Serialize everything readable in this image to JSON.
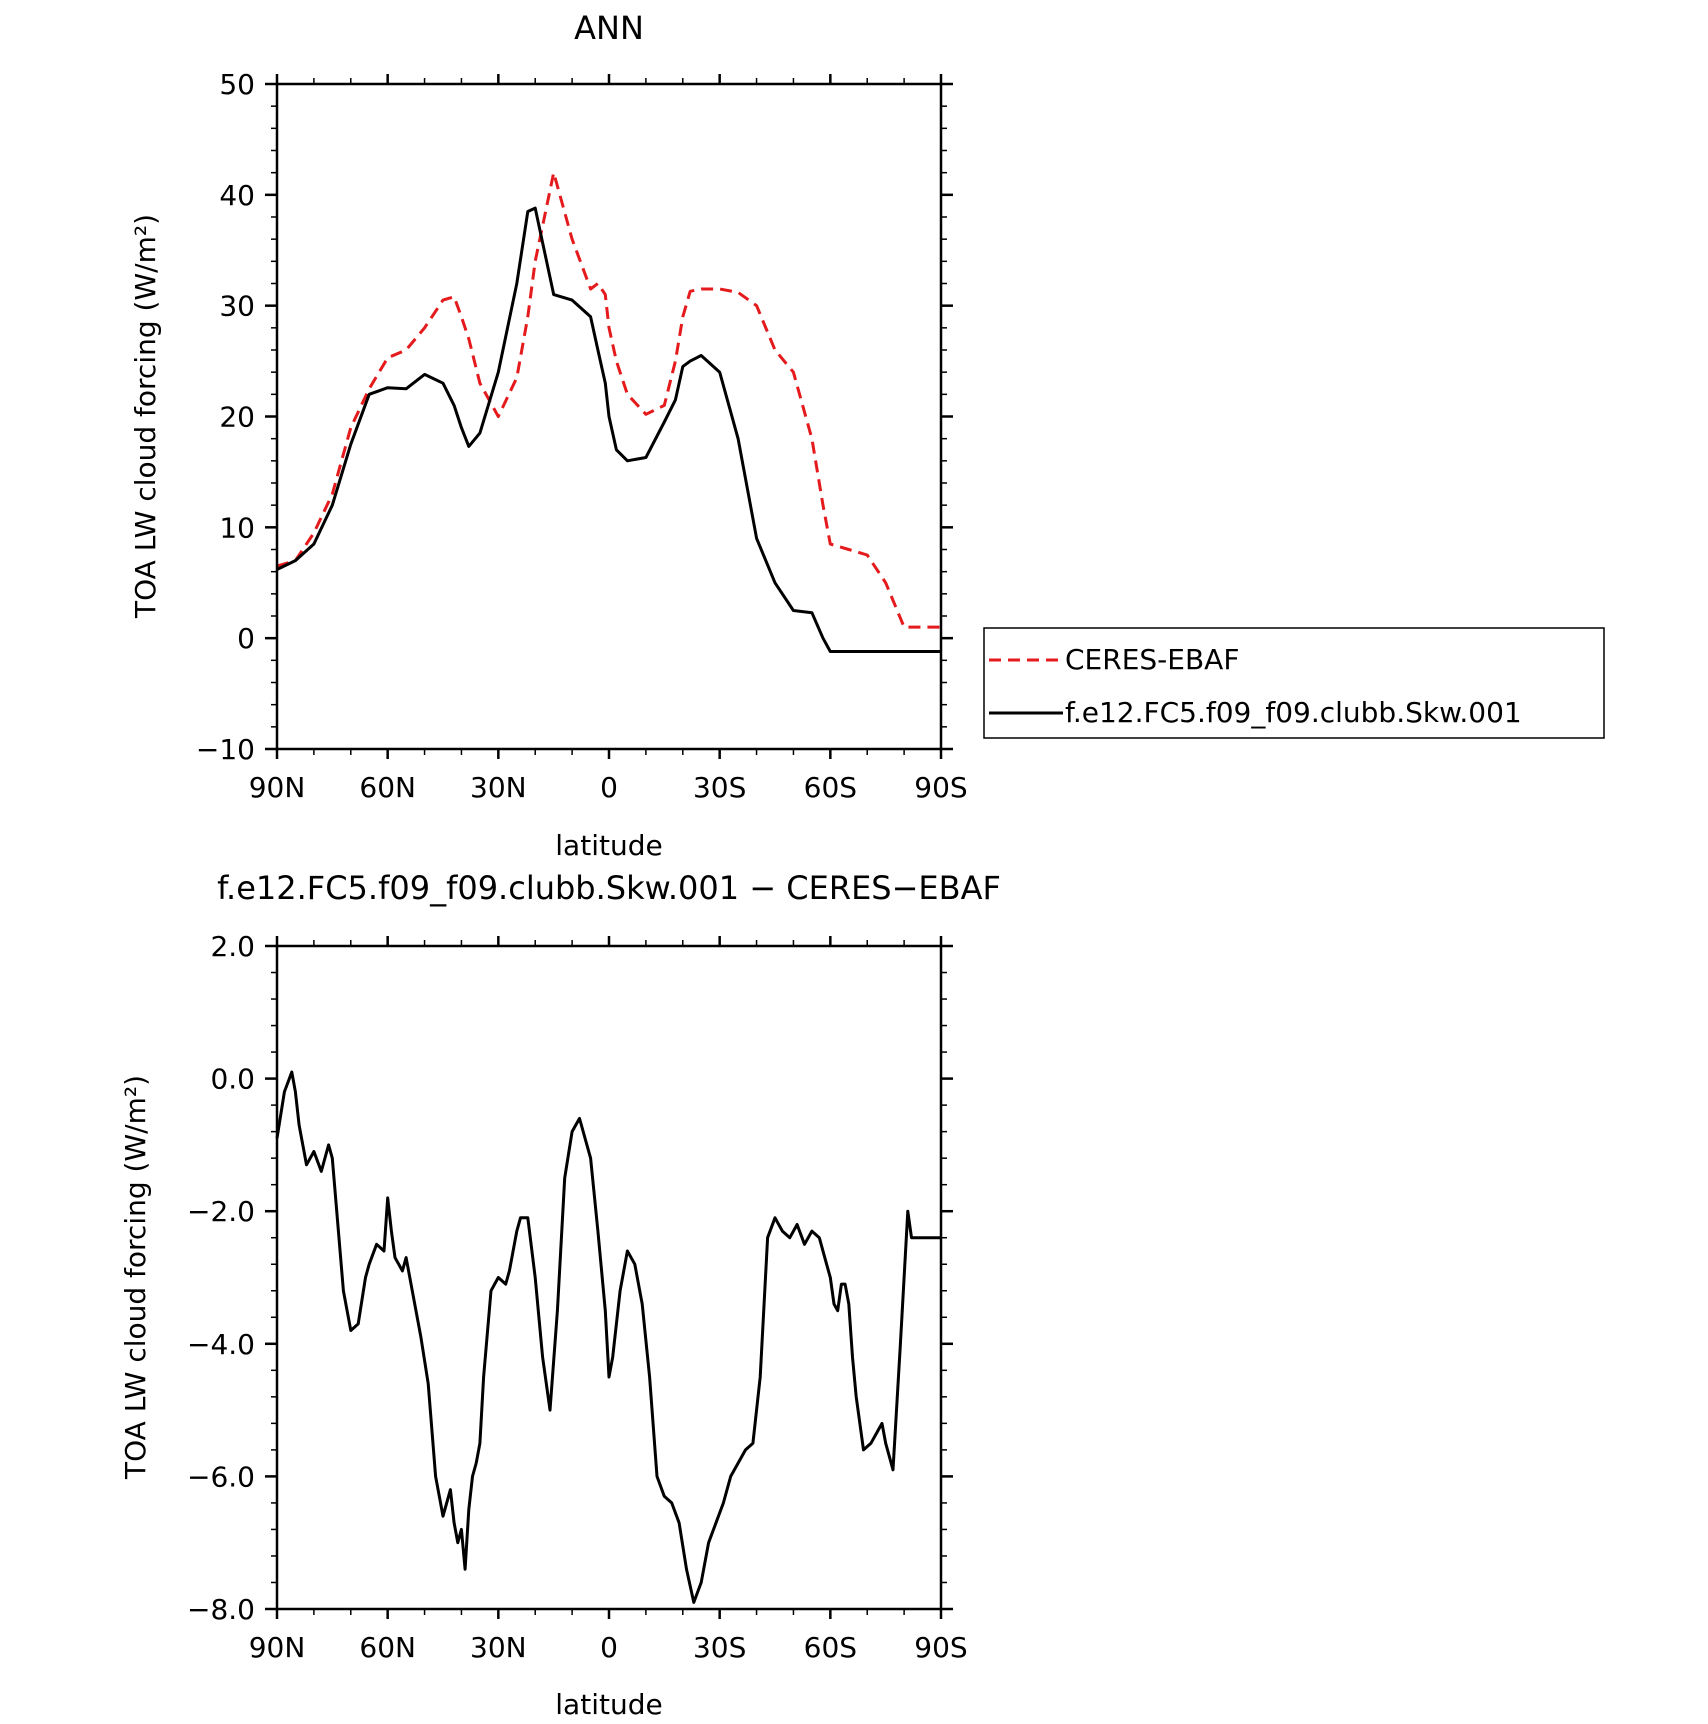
{
  "chart_data": [
    {
      "type": "line",
      "title": "ANN",
      "xlabel": "latitude",
      "ylabel": "TOA LW cloud forcing (W/m²)",
      "xlim": [
        90,
        -90
      ],
      "ylim": [
        -10,
        50
      ],
      "xticks": [
        90,
        60,
        30,
        0,
        -30,
        -60,
        -90
      ],
      "xtick_labels": [
        "90N",
        "60N",
        "30N",
        "0",
        "30S",
        "60S",
        "90S"
      ],
      "yticks": [
        -10,
        0,
        10,
        20,
        30,
        40,
        50
      ],
      "ytick_labels": [
        "−10",
        "0",
        "10",
        "20",
        "30",
        "40",
        "50"
      ],
      "legend_position": "right",
      "x": [
        90,
        85,
        80,
        75,
        70,
        65,
        60,
        55,
        50,
        45,
        42,
        40,
        38,
        35,
        30,
        25,
        22,
        20,
        15,
        10,
        5,
        3,
        1,
        0,
        -2,
        -5,
        -10,
        -15,
        -18,
        -20,
        -22,
        -25,
        -30,
        -35,
        -40,
        -45,
        -50,
        -55,
        -58,
        -60,
        -65,
        -70,
        -75,
        -80,
        -85,
        -88,
        -90
      ],
      "series": [
        {
          "name": "CERES-EBAF",
          "color": "#e41a1c",
          "dash": true,
          "values": [
            6.5,
            7.0,
            9.5,
            13.0,
            19.0,
            22.5,
            25.3,
            26.0,
            28.0,
            30.5,
            30.8,
            29.0,
            27.0,
            23.0,
            20.0,
            23.5,
            29.0,
            34.0,
            42.0,
            36.0,
            31.5,
            32.0,
            31.0,
            28.0,
            25.0,
            22.0,
            20.2,
            21.0,
            25.0,
            29.0,
            31.3,
            31.5,
            31.5,
            31.2,
            30.0,
            26.0,
            24.0,
            18.0,
            12.0,
            8.5,
            8.0,
            7.5,
            5.0,
            1.0,
            1.0,
            1.0,
            1.0
          ]
        },
        {
          "name": "f.e12.FC5.f09_f09.clubb.Skw.001",
          "color": "#000000",
          "dash": false,
          "values": [
            6.2,
            7.0,
            8.5,
            12.0,
            17.5,
            22.0,
            22.6,
            22.5,
            23.8,
            23.0,
            21.0,
            19.0,
            17.3,
            18.5,
            24.0,
            32.0,
            38.5,
            38.8,
            31.0,
            30.5,
            29.0,
            26.0,
            23.0,
            20.0,
            17.0,
            16.0,
            16.3,
            19.5,
            21.5,
            24.5,
            25.0,
            25.5,
            24.0,
            18.0,
            9.0,
            5.0,
            2.5,
            2.3,
            0.0,
            -1.2,
            -1.2,
            -1.2,
            -1.2,
            -1.2,
            -1.2,
            -1.2,
            -1.2
          ]
        }
      ]
    },
    {
      "type": "line",
      "title": "f.e12.FC5.f09_f09.clubb.Skw.001 − CERES−EBAF",
      "xlabel": "latitude",
      "ylabel": "TOA LW cloud forcing (W/m²)",
      "xlim": [
        90,
        -90
      ],
      "ylim": [
        -8,
        2
      ],
      "xticks": [
        90,
        60,
        30,
        0,
        -30,
        -60,
        -90
      ],
      "xtick_labels": [
        "90N",
        "60N",
        "30N",
        "0",
        "30S",
        "60S",
        "90S"
      ],
      "yticks": [
        -8,
        -6,
        -4,
        -2,
        0,
        2
      ],
      "ytick_labels": [
        "−8.0",
        "−6.0",
        "−4.0",
        "−2.0",
        "0.0",
        "2.0"
      ],
      "x": [
        90,
        88,
        86,
        85,
        84,
        83,
        82,
        80,
        78,
        76,
        75,
        72,
        70,
        68,
        66,
        65,
        63,
        61,
        60,
        59,
        58,
        57,
        56,
        55,
        53,
        51,
        49,
        47,
        45,
        43,
        42,
        41,
        40,
        39,
        38,
        37,
        36,
        35,
        34,
        32,
        30,
        28,
        27,
        26,
        25,
        24,
        22,
        20,
        18,
        16,
        14,
        12,
        10,
        8,
        5,
        3,
        1,
        0,
        -1,
        -3,
        -5,
        -7,
        -9,
        -11,
        -13,
        -15,
        -17,
        -19,
        -21,
        -23,
        -25,
        -27,
        -29,
        -31,
        -33,
        -35,
        -37,
        -39,
        -41,
        -43,
        -45,
        -47,
        -49,
        -51,
        -53,
        -55,
        -57,
        -59,
        -60,
        -61,
        -62,
        -63,
        -64,
        -65,
        -66,
        -67,
        -69,
        -71,
        -73,
        -74,
        -75,
        -77,
        -79,
        -81,
        -82,
        -83,
        -85,
        -86,
        -88,
        -89,
        -90
      ],
      "series": [
        {
          "name": "",
          "color": "#000000",
          "dash": false,
          "values": [
            -0.9,
            -0.2,
            0.1,
            -0.2,
            -0.7,
            -1.0,
            -1.3,
            -1.1,
            -1.4,
            -1.0,
            -1.2,
            -3.2,
            -3.8,
            -3.7,
            -3.0,
            -2.8,
            -2.5,
            -2.6,
            -1.8,
            -2.3,
            -2.7,
            -2.8,
            -2.9,
            -2.7,
            -3.3,
            -3.9,
            -4.6,
            -6.0,
            -6.6,
            -6.2,
            -6.7,
            -7.0,
            -6.8,
            -7.4,
            -6.5,
            -6.0,
            -5.8,
            -5.5,
            -4.5,
            -3.2,
            -3.0,
            -3.1,
            -2.9,
            -2.6,
            -2.3,
            -2.1,
            -2.1,
            -3.0,
            -4.2,
            -5.0,
            -3.5,
            -1.5,
            -0.8,
            -0.6,
            -1.2,
            -2.3,
            -3.5,
            -4.5,
            -4.2,
            -3.2,
            -2.6,
            -2.8,
            -3.4,
            -4.5,
            -6.0,
            -6.3,
            -6.4,
            -6.7,
            -7.4,
            -7.9,
            -7.6,
            -7.0,
            -6.7,
            -6.4,
            -6.0,
            -5.8,
            -5.6,
            -5.5,
            -4.5,
            -2.4,
            -2.1,
            -2.3,
            -2.4,
            -2.2,
            -2.5,
            -2.3,
            -2.4,
            -2.8,
            -3.0,
            -3.4,
            -3.5,
            -3.1,
            -3.1,
            -3.4,
            -4.2,
            -4.8,
            -5.6,
            -5.5,
            -5.3,
            -5.2,
            -5.5,
            -5.9,
            -4.0,
            -2.0,
            -2.4,
            -2.4,
            -2.4,
            -2.4,
            -2.4,
            -2.4,
            -2.4
          ]
        }
      ]
    }
  ]
}
